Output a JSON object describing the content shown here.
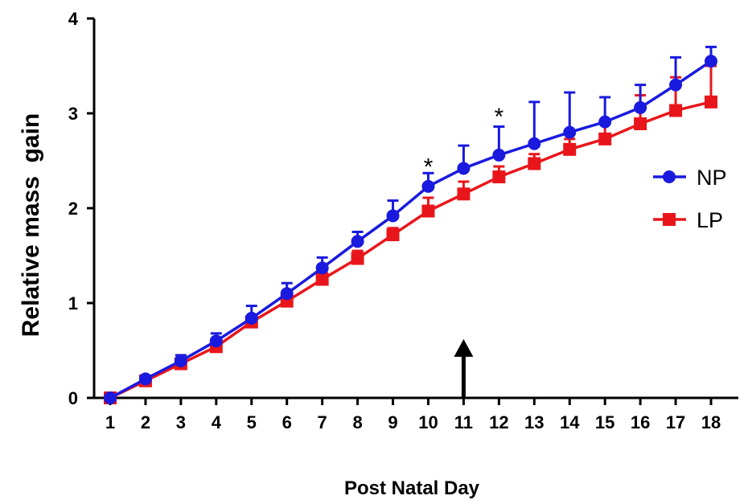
{
  "chart_data": {
    "type": "line",
    "xlabel": "Post Natal Day",
    "ylabel": "Relative mass  gain",
    "x": [
      1,
      2,
      3,
      4,
      5,
      6,
      7,
      8,
      9,
      10,
      11,
      12,
      13,
      14,
      15,
      16,
      17,
      18
    ],
    "xlim": [
      0.5,
      18.5
    ],
    "ylim": [
      0,
      4
    ],
    "yticks": [
      0,
      1,
      2,
      3,
      4
    ],
    "legend_position": "right",
    "series": [
      {
        "name": "NP",
        "color": "#1a1adf",
        "marker": "circle",
        "values": [
          0.0,
          0.2,
          0.39,
          0.6,
          0.84,
          1.1,
          1.37,
          1.65,
          1.92,
          2.23,
          2.42,
          2.56,
          2.68,
          2.8,
          2.91,
          3.06,
          3.3,
          3.55
        ],
        "errors": [
          0.0,
          0.03,
          0.06,
          0.08,
          0.13,
          0.11,
          0.11,
          0.1,
          0.16,
          0.14,
          0.24,
          0.3,
          0.44,
          0.42,
          0.26,
          0.24,
          0.29,
          0.15
        ]
      },
      {
        "name": "LP",
        "color": "#e8161b",
        "marker": "square",
        "values": [
          0.0,
          0.18,
          0.36,
          0.54,
          0.8,
          1.02,
          1.25,
          1.47,
          1.72,
          1.97,
          2.15,
          2.33,
          2.47,
          2.62,
          2.73,
          2.89,
          3.03,
          3.12
        ],
        "errors": [
          0.0,
          0.02,
          0.03,
          0.05,
          0.06,
          0.06,
          0.07,
          0.08,
          0.07,
          0.14,
          0.13,
          0.11,
          0.1,
          0.11,
          0.18,
          0.3,
          0.35,
          0.38
        ]
      }
    ],
    "annotations": [
      {
        "text": "*",
        "x": 10,
        "y": 2.52
      },
      {
        "text": "*",
        "x": 12,
        "y": 3.05
      }
    ],
    "arrow": {
      "x": 11,
      "y_from": 0,
      "y_to": 0.62
    }
  }
}
